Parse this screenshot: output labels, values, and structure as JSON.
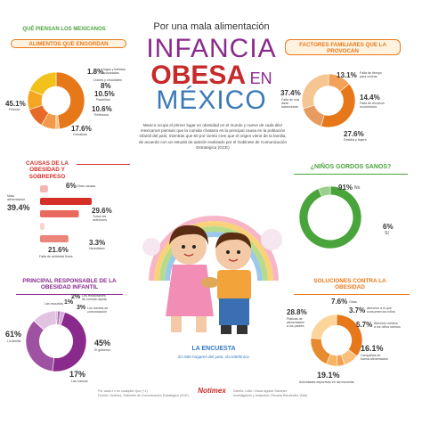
{
  "header": {
    "subtitle": "Por una mala alimentación",
    "title_1": "INFANCIA",
    "title_2a": "OBESA",
    "title_2b": "EN",
    "title_3": "MÉXICO"
  },
  "intro_text": "Mexico ocupa el primer lugar en obesidad en el mundo y nueve de cada diez mexicanos piensan que la comida chatarra es la principal causa en la población infantil del país, mientras que 60 por ciento cree que el origen viene de la familia, de acuerdo con un estudio de opinión realizado por el Gabinete de Comunicación Estratégica (GCE)",
  "left_heading": "QUÉ PIENSAN LOS MEXICANOS",
  "colors": {
    "orange": "#e7781a",
    "green": "#4aa43c",
    "red": "#d62f28",
    "purple": "#8a2a8c",
    "blue": "#2f78c4",
    "yellow": "#f2c21a"
  },
  "chart_data": [
    {
      "type": "pie",
      "title": "ALIMENTOS QUE ENGORDAN",
      "slices": [
        {
          "label": "Frituras",
          "value": 45.1
        },
        {
          "label": "Jugos y bebidas azucaradas",
          "value": 1.8
        },
        {
          "label": "Dulces y chocolates",
          "value": 8
        },
        {
          "label": "Pastelitos",
          "value": 10.5
        },
        {
          "label": "Refrescos",
          "value": 10.6
        },
        {
          "label": "Golosinas",
          "value": 17.6
        }
      ]
    },
    {
      "type": "pie",
      "title": "FACTORES FAMILIARES QUE LA PROVOCAN",
      "slices": [
        {
          "label": "Falta de tiempo para cocinar",
          "value": 13.1
        },
        {
          "label": "Falta de una dieta balanceada",
          "value": 37.4
        },
        {
          "label": "Falta de recursos económicos",
          "value": 14.4
        },
        {
          "label": "Desidia y flojera",
          "value": 27.6
        }
      ]
    },
    {
      "type": "bar",
      "title": "CAUSAS DE LA OBESIDAD Y SOBREPESO",
      "slices": [
        {
          "label": "Otras causas",
          "value": 6
        },
        {
          "label": "Mala alimentación",
          "value": 39.4
        },
        {
          "label": "Todos los anteriores",
          "value": 29.6
        },
        {
          "label": "Hereditario",
          "value": 3.3
        },
        {
          "label": "Falta de actividad física",
          "value": 21.6
        }
      ]
    },
    {
      "type": "pie",
      "title": "¿NIÑOS GORDOS SANOS?",
      "slices": [
        {
          "label": "No",
          "value": 91
        },
        {
          "label": "Sí",
          "value": 6
        }
      ]
    },
    {
      "type": "pie",
      "title": "PRINCIPAL RESPONSABLE DE LA OBESIDAD INFANTIL",
      "slices": [
        {
          "label": "Las escuelas",
          "value": 1
        },
        {
          "label": "Los restaurantes de comida rápida",
          "value": 2
        },
        {
          "label": "Los medios de comunicación",
          "value": 3
        },
        {
          "label": "La familia",
          "value": 61
        },
        {
          "label": "El gobierno",
          "value": 45
        },
        {
          "label": "Las marcas",
          "value": 17
        }
      ]
    },
    {
      "type": "pie",
      "title": "SOLUCIONES CONTRA LA OBESIDAD",
      "slices": [
        {
          "label": "Pláticas de alimentación a los padres",
          "value": 28.8
        },
        {
          "label": "Otras",
          "value": 7.6
        },
        {
          "label": "Atención a lo que consumen los niños",
          "value": 3.7
        },
        {
          "label": "Atención médica a los niños obesos",
          "value": 5.7
        },
        {
          "label": "Campañas de buena alimentación",
          "value": 16.1
        },
        {
          "label": "Actividades deportivas en las escuelas",
          "value": 19.1
        }
      ]
    }
  ],
  "labels": {
    "food": {
      "p1": "1.8%",
      "l1a": "Jugos y bebidas",
      "l1b": "azucaradas",
      "p2": "8%",
      "l2": "Dulces y chocolates",
      "p3": "10.5%",
      "l3": "Pastelitos",
      "p4": "10.6%",
      "l4": "Refrescos",
      "p5": "17.6%",
      "l5": "Golosinas",
      "p6": "45.1%",
      "l6": "Frituras"
    },
    "family": {
      "p1": "13.1%",
      "l1a": "Falta de tiempo",
      "l1b": "para cocinar",
      "p2": "37.4%",
      "l2a": "Falta de una",
      "l2b": "dieta",
      "l2c": "balanceada",
      "p3": "14.4%",
      "l3a": "Falta de recursos",
      "l3b": "económicos",
      "p4": "27.6%",
      "l4": "Desidia y flojera"
    },
    "causes": {
      "p1": "6%",
      "l1": "Otras causas",
      "p2": "39.4%",
      "l2a": "Mala",
      "l2b": "alimentación",
      "p3": "29.6%",
      "l3a": "Todos los",
      "l3b": "anteriores",
      "p4": "3.3%",
      "l4": "Hereditario",
      "p5": "21.6%",
      "l5": "Falta de actividad física"
    },
    "healthy": {
      "p1": "91%",
      "l1": "No",
      "p2": "6%",
      "l2": "Sí"
    },
    "resp": {
      "p1": "1%",
      "l1": "Las escuelas",
      "p2": "2%",
      "l2a": "Los restaurantes",
      "l2b": "de comida rápida",
      "p3": "3%",
      "l3a": "Los medios de",
      "l3b": "comunicación",
      "p4": "61%",
      "l4": "La familia",
      "p5": "45%",
      "l5": "El gobierno",
      "p6": "17%",
      "l6": "Las marcas"
    },
    "sol": {
      "p1": "7.6%",
      "l1": "Otras",
      "p2": "3.7%",
      "l2a": "Atención a lo que",
      "l2b": "consumen los niños",
      "p3": "28.8%",
      "l3a": "Pláticas de",
      "l3b": "alimentación",
      "l3c": "a los padres",
      "p4": "5.7%",
      "l4a": "Atención médica",
      "l4b": "a los niños obesos",
      "p5": "16.1%",
      "l5a": "Campañas de",
      "l5b": "buena alimentación",
      "p6": "19.1%",
      "l6": "Actividades deportivas en las escuelas"
    }
  },
  "survey": {
    "title": "LA ENCUESTA",
    "text": "En 800 hogares del país, vía telefónica"
  },
  "footer": {
    "left_a": "Por cada x x en cualquier Que (+1)",
    "left_b": "Fuente: Notimex, Gabinete de Comunicación Estratégica (GCE)",
    "brand": "Notimex",
    "right_a": "Diseño: Lidia / Oscar Aguilar Sánchez",
    "right_b": "Investigación y redacción: Roxana Hernández Velás"
  }
}
